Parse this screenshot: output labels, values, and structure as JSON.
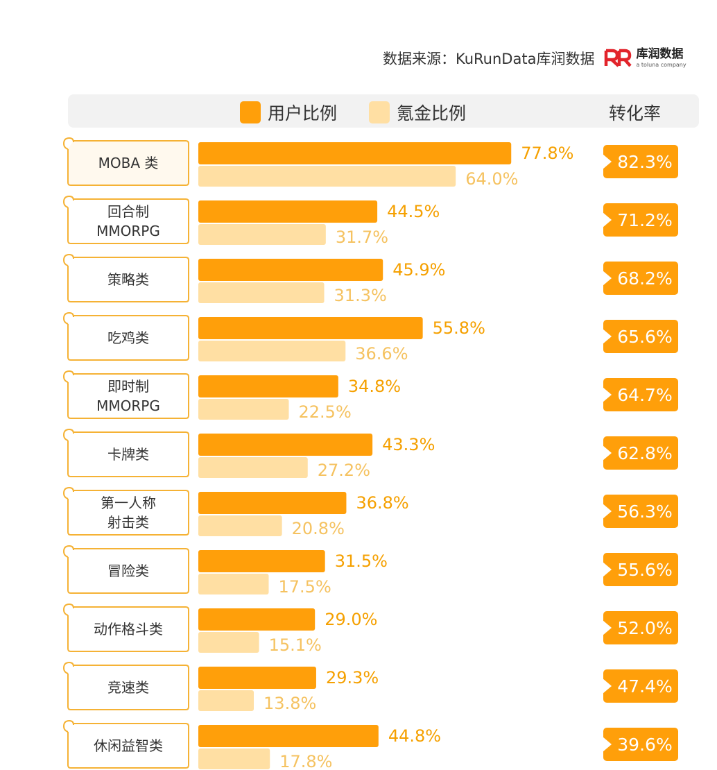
{
  "source": {
    "text": "数据来源：KuRunData库润数据",
    "brand_mark": "R",
    "brand_name": "库润数据",
    "brand_sub": "a toluna company"
  },
  "colors": {
    "user": "#FF9F0A",
    "pay": "#FFDFA3",
    "user_text": "#F5A000",
    "pay_text": "#F5C260",
    "badge": "#FF9F0A",
    "label_border": "#F5B235",
    "header_bg": "#F2F2F2",
    "logo_red": "#E2242B"
  },
  "chart_data": {
    "type": "bar",
    "orientation": "horizontal",
    "title": "",
    "legend": [
      "用户比例",
      "氪金比例"
    ],
    "rate_header": "转化率",
    "categories": [
      [
        "MOBA 类"
      ],
      [
        "回合制",
        "MMORPG"
      ],
      [
        "策略类"
      ],
      [
        "吃鸡类"
      ],
      [
        "即时制",
        "MMORPG"
      ],
      [
        "卡牌类"
      ],
      [
        "第一人称",
        "射击类"
      ],
      [
        "冒险类"
      ],
      [
        "动作格斗类"
      ],
      [
        "竞速类"
      ],
      [
        "休闲益智类"
      ]
    ],
    "series": [
      {
        "name": "用户比例",
        "values": [
          77.8,
          44.5,
          45.9,
          55.8,
          34.8,
          43.3,
          36.8,
          31.5,
          29.0,
          29.3,
          44.8
        ]
      },
      {
        "name": "氪金比例",
        "values": [
          64.0,
          31.7,
          31.3,
          36.6,
          22.5,
          27.2,
          20.8,
          17.5,
          15.1,
          13.8,
          17.8
        ]
      },
      {
        "name": "转化率",
        "values": [
          82.3,
          71.2,
          68.2,
          65.6,
          64.7,
          62.8,
          56.3,
          55.6,
          52.0,
          47.4,
          39.6
        ]
      }
    ],
    "display": {
      "user": [
        "77.8%",
        "44.5%",
        "45.9%",
        "55.8%",
        "34.8%",
        "43.3%",
        "36.8%",
        "31.5%",
        "29.0%",
        "29.3%",
        "44.8%"
      ],
      "pay": [
        "64.0%",
        "31.7%",
        "31.3%",
        "36.6%",
        "22.5%",
        "27.2%",
        "20.8%",
        "17.5%",
        "15.1%",
        "13.8%",
        "17.8%"
      ],
      "rate": [
        "82.3%",
        "71.2%",
        "68.2%",
        "65.6%",
        "64.7%",
        "62.8%",
        "56.3%",
        "55.6%",
        "52.0%",
        "47.4%",
        "39.6%"
      ]
    },
    "unit": "%"
  }
}
